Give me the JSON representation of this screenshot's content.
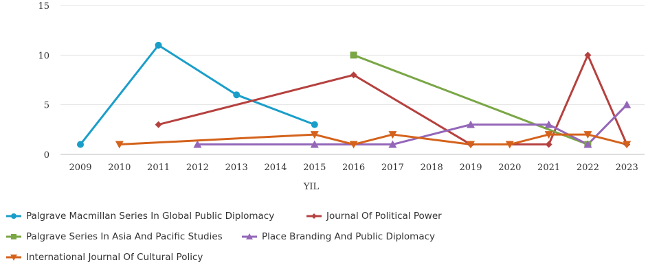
{
  "chart_data": {
    "type": "line",
    "title": "",
    "xlabel": "YIL",
    "ylabel": "",
    "x": [
      "2009",
      "2010",
      "2011",
      "2012",
      "2013",
      "2014",
      "2015",
      "2016",
      "2017",
      "2018",
      "2019",
      "2020",
      "2021",
      "2022",
      "2023"
    ],
    "ylim": [
      0,
      15
    ],
    "yticks": [
      0,
      5,
      10,
      15
    ],
    "grid": "horizontal",
    "legend_position": "bottom-left",
    "series": [
      {
        "name": "Palgrave Macmillan Series In Global Public Diplomacy",
        "color": "#1a9ec9",
        "marker": "circle",
        "points": [
          [
            "2009",
            1
          ],
          [
            "2011",
            11
          ],
          [
            "2013",
            6
          ],
          [
            "2015",
            3
          ]
        ]
      },
      {
        "name": "Journal Of Political Power",
        "color": "#b5413f",
        "marker": "diamond",
        "points": [
          [
            "2011",
            3
          ],
          [
            "2016",
            8
          ],
          [
            "2019",
            1
          ],
          [
            "2021",
            1
          ],
          [
            "2022",
            10
          ],
          [
            "2023",
            1
          ]
        ]
      },
      {
        "name": "Palgrave Series In Asia And Pacific Studies",
        "color": "#7aa646",
        "marker": "square",
        "points": [
          [
            "2016",
            10
          ],
          [
            "2022",
            1
          ]
        ]
      },
      {
        "name": "Place Branding And Public Diplomacy",
        "color": "#9466b8",
        "marker": "triangle-up",
        "points": [
          [
            "2012",
            1
          ],
          [
            "2015",
            1
          ],
          [
            "2017",
            1
          ],
          [
            "2019",
            3
          ],
          [
            "2021",
            3
          ],
          [
            "2022",
            1
          ],
          [
            "2023",
            5
          ]
        ]
      },
      {
        "name": "International Journal Of Cultural Policy",
        "color": "#d4621b",
        "marker": "triangle-down",
        "points": [
          [
            "2010",
            1
          ],
          [
            "2015",
            2
          ],
          [
            "2016",
            1
          ],
          [
            "2017",
            2
          ],
          [
            "2019",
            1
          ],
          [
            "2020",
            1
          ],
          [
            "2021",
            2
          ],
          [
            "2022",
            2
          ],
          [
            "2023",
            1
          ]
        ]
      }
    ]
  }
}
